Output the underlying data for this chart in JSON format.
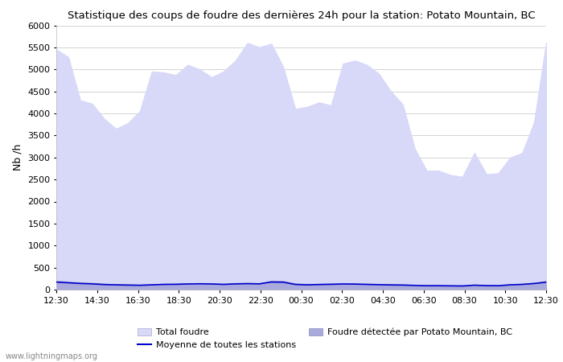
{
  "title": "Statistique des coups de foudre des dernières 24h pour la station: Potato Mountain, BC",
  "ylabel": "Nb /h",
  "watermark": "www.lightningmaps.org",
  "ylim": [
    0,
    6000
  ],
  "yticks": [
    0,
    500,
    1000,
    1500,
    2000,
    2500,
    3000,
    3500,
    4000,
    4500,
    5000,
    5500,
    6000
  ],
  "xtick_labels": [
    "12:30",
    "14:30",
    "16:30",
    "18:30",
    "20:30",
    "22:30",
    "00:30",
    "02:30",
    "04:30",
    "06:30",
    "08:30",
    "10:30",
    "12:30"
  ],
  "color_total": "#d8d8f8",
  "color_detected": "#aaaadd",
  "color_mean": "#0000cc",
  "bg_plot": "#ffffff",
  "bg_fig": "#ffffff",
  "legend_total": "Total foudre",
  "legend_detected": "Foudre détectée par Potato Mountain, BC",
  "legend_mean": "Moyenne de toutes les stations",
  "total_foudre": [
    5450,
    5280,
    4300,
    4220,
    3880,
    3650,
    3780,
    4050,
    4950,
    4930,
    4870,
    5100,
    5000,
    4820,
    4950,
    5200,
    5600,
    5500,
    5580,
    5050,
    4100,
    4150,
    4250,
    4180,
    5130,
    5200,
    5100,
    4900,
    4500,
    4200,
    3200,
    2700,
    2700,
    2600,
    2560,
    3100,
    2620,
    2640,
    3000,
    3100,
    3800,
    5600
  ],
  "detected": [
    200,
    180,
    160,
    150,
    130,
    120,
    115,
    110,
    120,
    130,
    135,
    140,
    145,
    140,
    130,
    145,
    150,
    145,
    200,
    195,
    135,
    125,
    130,
    135,
    140,
    138,
    130,
    125,
    120,
    115,
    105,
    98,
    98,
    95,
    92,
    110,
    100,
    98,
    120,
    130,
    155,
    195
  ],
  "mean_line": [
    170,
    155,
    140,
    130,
    115,
    108,
    103,
    98,
    108,
    118,
    120,
    128,
    132,
    128,
    118,
    130,
    135,
    130,
    172,
    168,
    118,
    108,
    115,
    120,
    128,
    125,
    118,
    112,
    106,
    103,
    95,
    88,
    88,
    85,
    82,
    100,
    90,
    88,
    108,
    118,
    138,
    168
  ]
}
